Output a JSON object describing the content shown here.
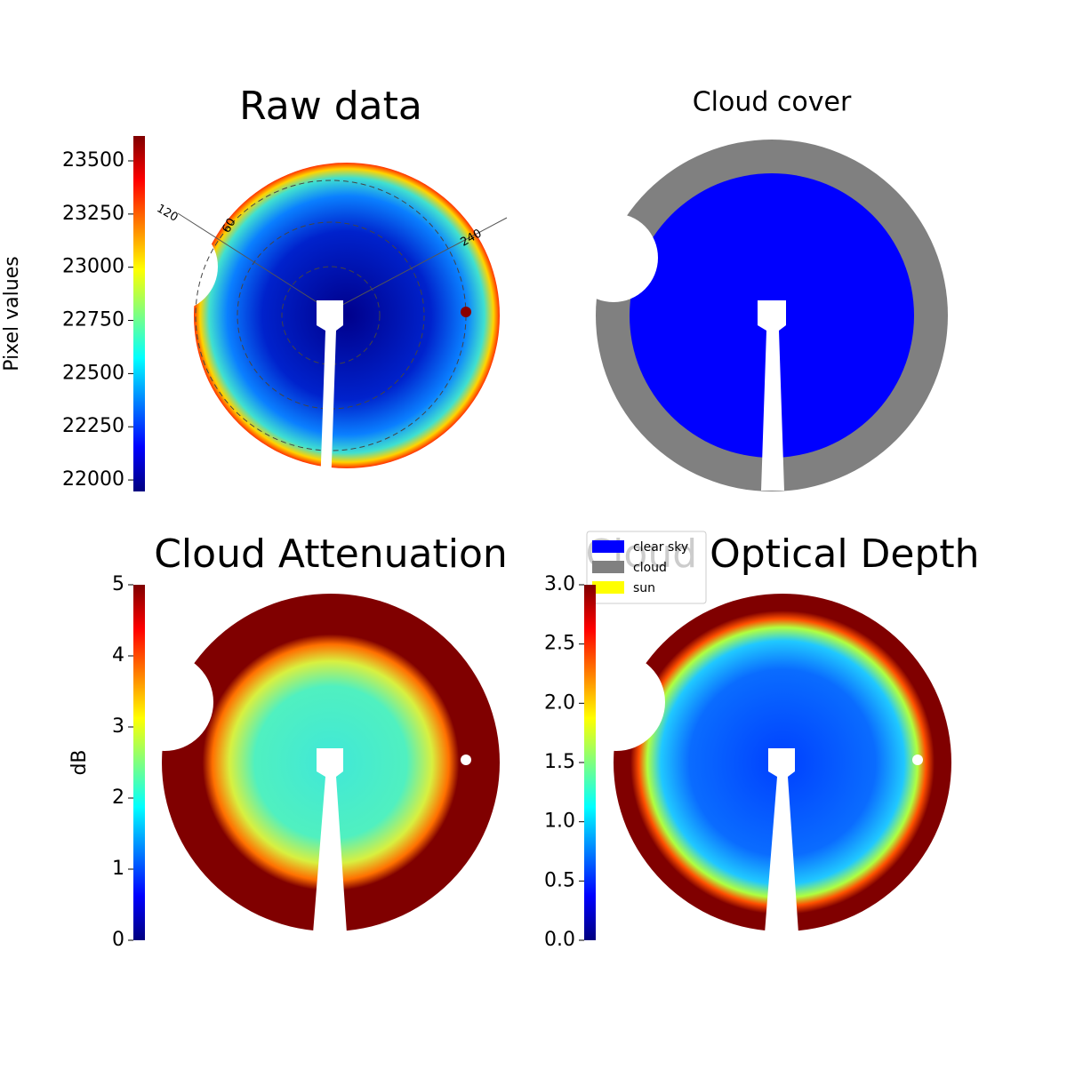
{
  "chart_data": [
    {
      "type": "image",
      "title": "Raw data",
      "colorbar_label": "Pixel values",
      "colormap": "jet",
      "ylim": [
        21946,
        23617
      ],
      "yticks": [
        22000,
        22250,
        22500,
        22750,
        23000,
        23250,
        23500
      ],
      "annotations": [
        "120",
        "60",
        "240"
      ]
    },
    {
      "type": "categorical_image",
      "title": "Cloud cover",
      "series": [
        {
          "name": "clear sky",
          "color": "#0000ff"
        },
        {
          "name": "cloud",
          "color": "#808080"
        },
        {
          "name": "sun",
          "color": "#ffff00"
        }
      ]
    },
    {
      "type": "image",
      "title": "Cloud Attenuation",
      "colorbar_label": "dB",
      "colormap": "jet",
      "ylim": [
        0,
        5
      ],
      "yticks": [
        0,
        1,
        2,
        3,
        4,
        5
      ]
    },
    {
      "type": "image",
      "title": "Cloud Optical Depth",
      "colormap": "jet",
      "ylim": [
        0,
        3
      ],
      "yticks": [
        {
          "value": 0,
          "label": "0.0"
        },
        {
          "value": 0.5,
          "label": "0.5"
        },
        {
          "value": 1,
          "label": "1.0"
        },
        {
          "value": 1.5,
          "label": "1.5"
        },
        {
          "value": 2,
          "label": "2.0"
        },
        {
          "value": 2.5,
          "label": "2.5"
        },
        {
          "value": 3,
          "label": "3.0"
        }
      ]
    }
  ]
}
